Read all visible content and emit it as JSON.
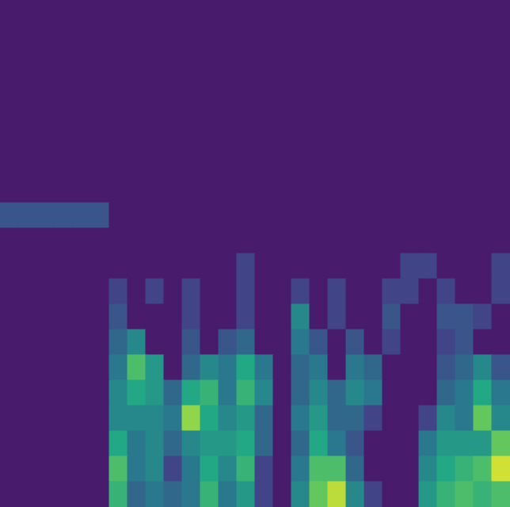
{
  "chart_data": {
    "type": "heatmap",
    "tick_labels": false,
    "xlim": [
      0,
      28
    ],
    "ylim": [
      0,
      20
    ],
    "zlim": [
      0,
      1
    ],
    "cells": [
      [
        0,
        0,
        0,
        0,
        0,
        0,
        0,
        0,
        0,
        0,
        0,
        0,
        0,
        0,
        0,
        0,
        0,
        0,
        0,
        0,
        0,
        0,
        0,
        0,
        0,
        0,
        0,
        0
      ],
      [
        0,
        0,
        0,
        0,
        0,
        0,
        0,
        0,
        0,
        0,
        0,
        0,
        0,
        0,
        0,
        0,
        0,
        0,
        0,
        0,
        0,
        0,
        0,
        0,
        0,
        0,
        0,
        0
      ],
      [
        0,
        0,
        0,
        0,
        0,
        0,
        0,
        0,
        0,
        0,
        0,
        0,
        0,
        0,
        0,
        0,
        0,
        0,
        0,
        0,
        0,
        0,
        0,
        0,
        0,
        0,
        0,
        0
      ],
      [
        0,
        0,
        0,
        0,
        0,
        0,
        0,
        0,
        0,
        0,
        0,
        0,
        0,
        0,
        0,
        0,
        0,
        0,
        0,
        0,
        0,
        0,
        0,
        0,
        0,
        0,
        0,
        0
      ],
      [
        0,
        0,
        0,
        0,
        0,
        0,
        0,
        0,
        0,
        0,
        0,
        0,
        0,
        0,
        0,
        0,
        0,
        0,
        0,
        0,
        0,
        0,
        0,
        0,
        0,
        0,
        0,
        0
      ],
      [
        0,
        0,
        0,
        0,
        0,
        0,
        0,
        0,
        0,
        0,
        0,
        0,
        0,
        0,
        0,
        0,
        0,
        0,
        0,
        0,
        0,
        0,
        0,
        0,
        0,
        0,
        0,
        0
      ],
      [
        0,
        0,
        0,
        0,
        0,
        0,
        0,
        0,
        0,
        0,
        0,
        0,
        0,
        0,
        0,
        0,
        0,
        0,
        0,
        0,
        0,
        0,
        0,
        0,
        0,
        0,
        0,
        0
      ],
      [
        0,
        0,
        0,
        0,
        0,
        0,
        0,
        0,
        0,
        0,
        0,
        0,
        0,
        0,
        0,
        0,
        0,
        0,
        0,
        0,
        0,
        0,
        0,
        0,
        0,
        0,
        0,
        0
      ],
      [
        0.25,
        0.25,
        0.25,
        0.25,
        0.25,
        0.25,
        0,
        0,
        0,
        0,
        0,
        0,
        0,
        0,
        0,
        0,
        0,
        0,
        0,
        0,
        0,
        0,
        0,
        0,
        0,
        0,
        0,
        0
      ],
      [
        0,
        0,
        0,
        0,
        0,
        0,
        0,
        0,
        0,
        0,
        0,
        0,
        0,
        0,
        0,
        0,
        0,
        0,
        0,
        0,
        0,
        0,
        0,
        0,
        0,
        0,
        0,
        0
      ],
      [
        0,
        0,
        0,
        0,
        0,
        0,
        0,
        0,
        0,
        0,
        0,
        0,
        0,
        0.2,
        0,
        0,
        0,
        0,
        0,
        0,
        0,
        0,
        0.2,
        0.2,
        0,
        0,
        0,
        0.2
      ],
      [
        0,
        0,
        0,
        0,
        0,
        0,
        0.2,
        0,
        0.2,
        0,
        0.2,
        0,
        0,
        0.2,
        0,
        0,
        0.2,
        0,
        0.2,
        0,
        0,
        0.2,
        0.2,
        0,
        0.2,
        0,
        0,
        0.2
      ],
      [
        0,
        0,
        0,
        0,
        0,
        0,
        0.25,
        0,
        0,
        0,
        0.2,
        0,
        0,
        0.2,
        0,
        0,
        0.4,
        0,
        0.2,
        0,
        0,
        0.25,
        0,
        0,
        0.25,
        0.25,
        0.2,
        0
      ],
      [
        0,
        0,
        0,
        0,
        0,
        0,
        0.3,
        0.4,
        0,
        0,
        0.25,
        0,
        0.25,
        0.3,
        0,
        0,
        0.35,
        0.25,
        0,
        0.25,
        0,
        0.2,
        0,
        0,
        0.2,
        0.25,
        0,
        0
      ],
      [
        0,
        0,
        0,
        0,
        0,
        0,
        0.35,
        0.6,
        0.45,
        0,
        0.3,
        0.4,
        0.35,
        0.5,
        0.35,
        0,
        0.3,
        0.35,
        0,
        0.35,
        0.3,
        0,
        0,
        0,
        0.25,
        0.3,
        0.4,
        0.25
      ],
      [
        0,
        0,
        0,
        0,
        0,
        0,
        0.4,
        0.5,
        0.45,
        0.3,
        0.5,
        0.55,
        0.35,
        0.55,
        0.4,
        0,
        0.3,
        0.4,
        0.3,
        0.4,
        0.35,
        0,
        0,
        0,
        0.3,
        0.35,
        0.5,
        0.35
      ],
      [
        0,
        0,
        0,
        0,
        0,
        0,
        0.4,
        0.4,
        0.4,
        0.35,
        0.75,
        0.5,
        0.4,
        0.45,
        0.3,
        0,
        0.35,
        0.45,
        0.3,
        0.3,
        0.2,
        0,
        0,
        0.2,
        0.4,
        0.35,
        0.65,
        0.4
      ],
      [
        0,
        0,
        0,
        0,
        0,
        0,
        0.5,
        0.35,
        0.4,
        0.3,
        0.4,
        0.45,
        0.45,
        0.5,
        0.3,
        0,
        0.3,
        0.5,
        0.35,
        0.25,
        0,
        0,
        0,
        0.35,
        0.45,
        0.45,
        0.45,
        0.65
      ],
      [
        0,
        0,
        0,
        0,
        0,
        0,
        0.6,
        0.35,
        0.4,
        0.2,
        0.35,
        0.5,
        0.4,
        0.55,
        0.2,
        0,
        0.35,
        0.6,
        0.6,
        0.3,
        0,
        0,
        0,
        0.4,
        0.5,
        0.55,
        0.6,
        0.9
      ],
      [
        0,
        0,
        0,
        0,
        0,
        0,
        0.55,
        0.3,
        0.35,
        0.3,
        0.35,
        0.55,
        0.35,
        0.45,
        0.2,
        0,
        0.4,
        0.65,
        0.85,
        0.4,
        0.2,
        0,
        0,
        0.45,
        0.55,
        0.6,
        0.55,
        0.6
      ]
    ]
  }
}
